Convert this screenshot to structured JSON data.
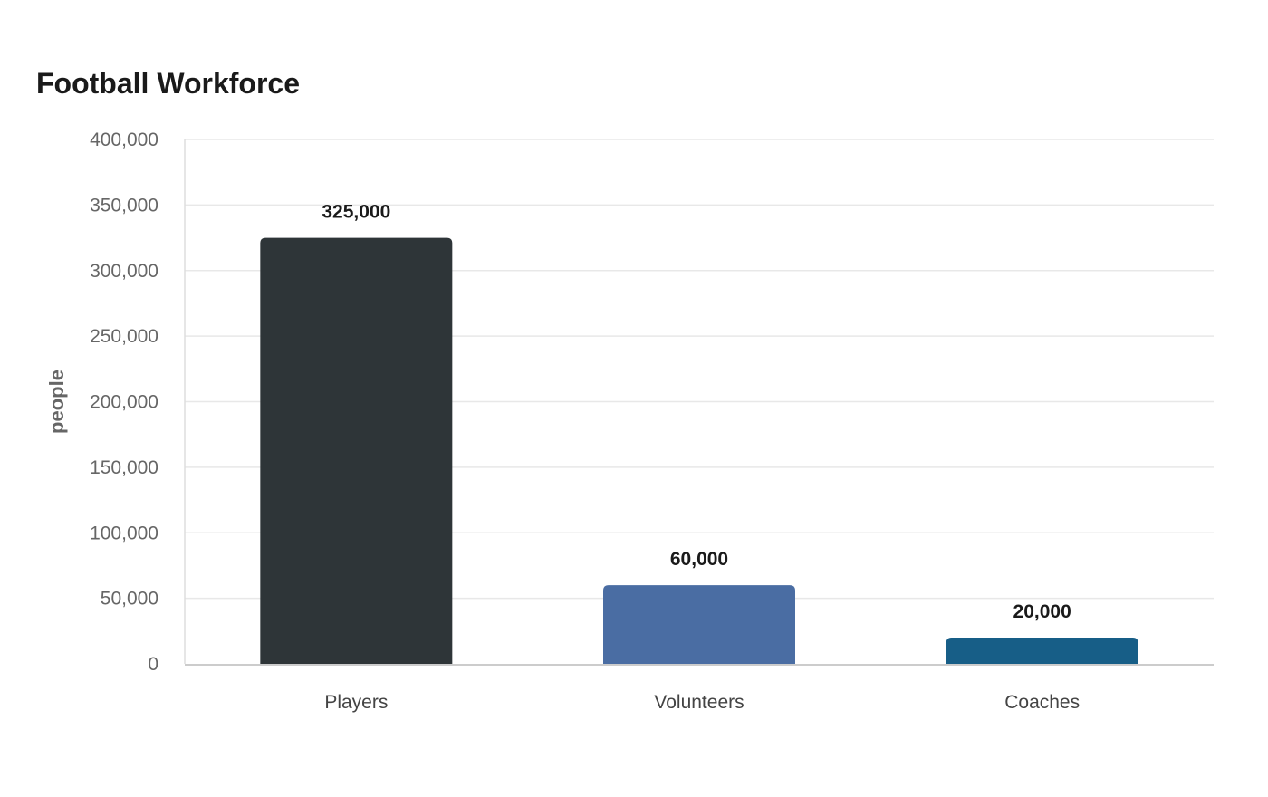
{
  "chart_data": {
    "type": "bar",
    "title": "Football Workforce",
    "xlabel": "",
    "ylabel": "people",
    "categories": [
      "Players",
      "Volunteers",
      "Coaches"
    ],
    "values": [
      325000,
      60000,
      20000
    ],
    "value_labels": [
      "325,000",
      "60,000",
      "20,000"
    ],
    "colors": [
      "#2e3538",
      "#4a6da3",
      "#175e87"
    ],
    "ylim": [
      0,
      400000
    ],
    "y_ticks": [
      0,
      50000,
      100000,
      150000,
      200000,
      250000,
      300000,
      350000,
      400000
    ],
    "y_tick_labels": [
      "0",
      "50,000",
      "100,000",
      "150,000",
      "200,000",
      "250,000",
      "300,000",
      "350,000",
      "400,000"
    ],
    "grid": true,
    "legend": "none"
  }
}
